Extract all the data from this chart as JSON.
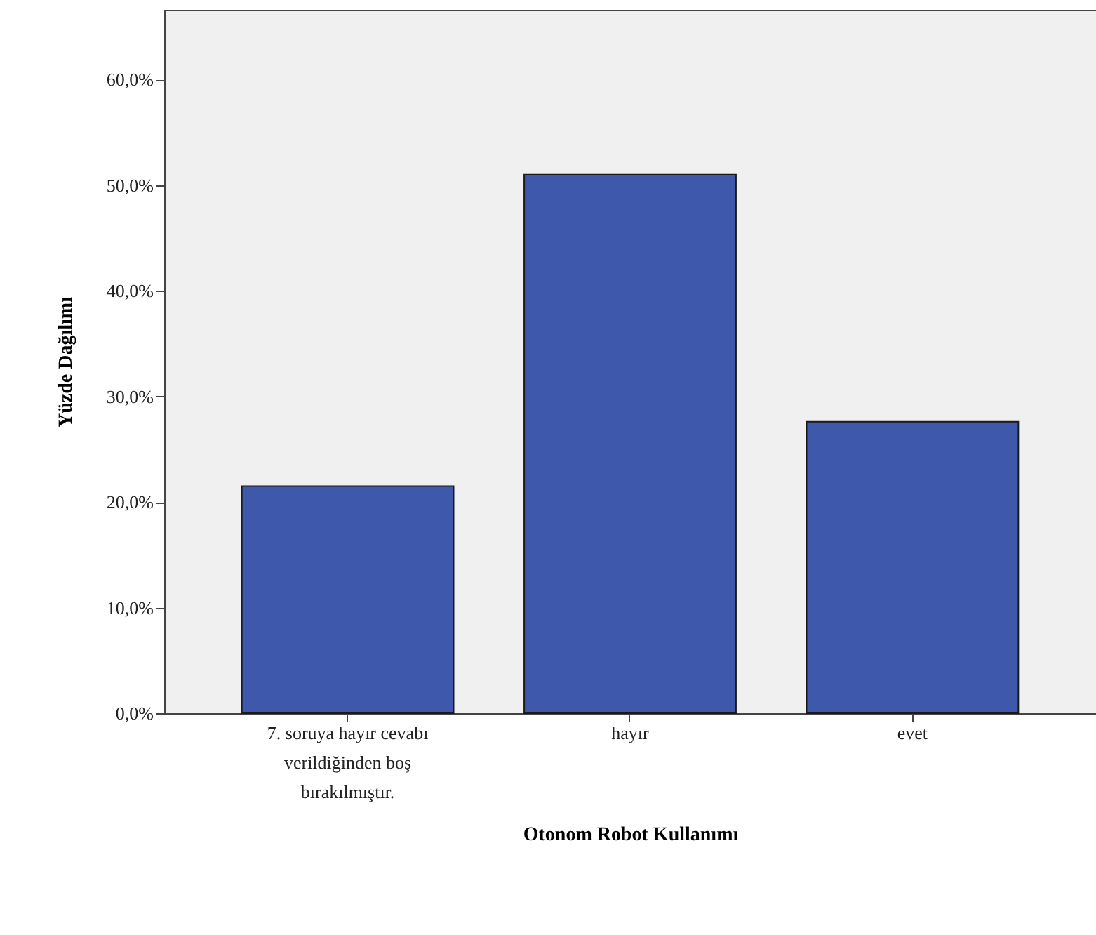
{
  "chart_data": {
    "type": "bar",
    "xlabel": "Otonom Robot Kullanımı",
    "ylabel": "Yüzde Dağılımı",
    "categories": [
      "7. soruya hayır cevabı verildiğinden boş bırakılmıştır.",
      "hayır",
      "evet"
    ],
    "values": [
      21.5,
      51.0,
      27.6
    ],
    "color": "#3e58ac",
    "ylim": [
      0,
      66.6
    ],
    "yticks": [
      {
        "value": 0,
        "label": "0,0%"
      },
      {
        "value": 10,
        "label": "10,0%"
      },
      {
        "value": 20,
        "label": "20,0%"
      },
      {
        "value": 30,
        "label": "30,0%"
      },
      {
        "value": 40,
        "label": "40,0%"
      },
      {
        "value": 50,
        "label": "50,0%"
      },
      {
        "value": 60,
        "label": "60,0%"
      }
    ],
    "grid": false
  }
}
